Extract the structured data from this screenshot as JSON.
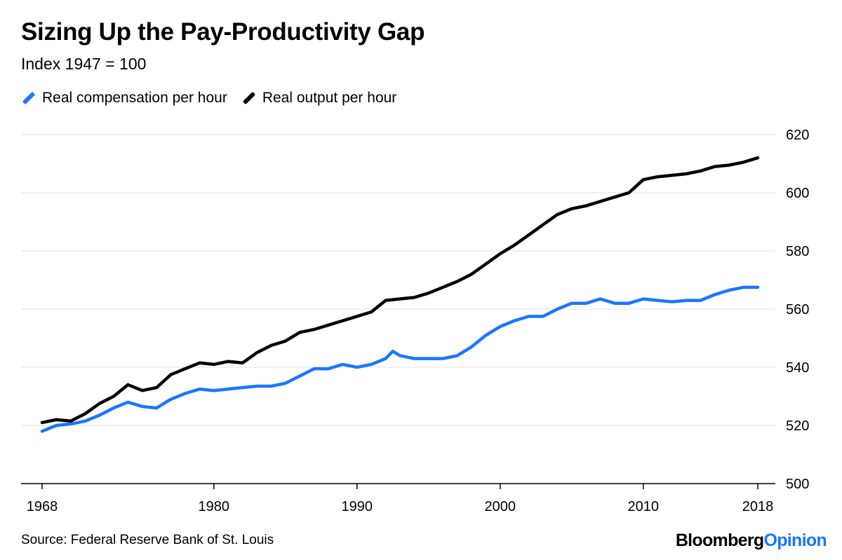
{
  "header": {
    "title": "Sizing Up the Pay-Productivity Gap",
    "subtitle": "Index 1947 = 100"
  },
  "footer": {
    "source": "Source: Federal Reserve Bank of St. Louis",
    "brand_part1": "Bloomberg",
    "brand_part2": "Opinion"
  },
  "colors": {
    "compensation": "#1a76ff",
    "output": "#000000",
    "grid": "#e3e3e3",
    "brand_accent": "#1a76ff"
  },
  "chart_data": {
    "type": "line",
    "title": "Sizing Up the Pay-Productivity Gap",
    "subtitle": "Index 1947 = 100",
    "xlabel": "",
    "ylabel": "",
    "xlim": [
      1968,
      2018
    ],
    "ylim": [
      500,
      620
    ],
    "x_ticks": [
      1968,
      1980,
      1990,
      2000,
      2010,
      2018
    ],
    "y_ticks": [
      500,
      520,
      540,
      560,
      580,
      600,
      620
    ],
    "y_axis_side": "right",
    "grid": "horizontal",
    "legend_position": "top-left",
    "series": [
      {
        "name": "Real compensation per hour",
        "color": "#1a76ff",
        "points": [
          [
            1968.0,
            518
          ],
          [
            1969.0,
            520
          ],
          [
            1970.0,
            520.5
          ],
          [
            1971.0,
            521.5
          ],
          [
            1972.0,
            523.5
          ],
          [
            1973.0,
            526
          ],
          [
            1974.0,
            528
          ],
          [
            1975.0,
            526.5
          ],
          [
            1976.0,
            526
          ],
          [
            1977.0,
            529
          ],
          [
            1978.0,
            531
          ],
          [
            1979.0,
            532.5
          ],
          [
            1980.0,
            532
          ],
          [
            1981.0,
            532.5
          ],
          [
            1982.0,
            533
          ],
          [
            1983.0,
            533.5
          ],
          [
            1984.0,
            533.5
          ],
          [
            1985.0,
            534.5
          ],
          [
            1986.0,
            537
          ],
          [
            1987.0,
            539.5
          ],
          [
            1988.0,
            539.5
          ],
          [
            1989.0,
            541
          ],
          [
            1990.0,
            540
          ],
          [
            1991.0,
            541
          ],
          [
            1992.0,
            543
          ],
          [
            1992.5,
            545.5
          ],
          [
            1993.0,
            544
          ],
          [
            1994.0,
            543
          ],
          [
            1995.0,
            543
          ],
          [
            1996.0,
            543
          ],
          [
            1997.0,
            544
          ],
          [
            1998.0,
            547
          ],
          [
            1999.0,
            551
          ],
          [
            2000.0,
            554
          ],
          [
            2001.0,
            556
          ],
          [
            2002.0,
            557.5
          ],
          [
            2003.0,
            557.5
          ],
          [
            2004.0,
            560
          ],
          [
            2005.0,
            562
          ],
          [
            2006.0,
            562
          ],
          [
            2007.0,
            563.5
          ],
          [
            2008.0,
            562
          ],
          [
            2009.0,
            562
          ],
          [
            2010.0,
            563.5
          ],
          [
            2011.0,
            563
          ],
          [
            2012.0,
            562.5
          ],
          [
            2013.0,
            563
          ],
          [
            2014.0,
            563
          ],
          [
            2015.0,
            565
          ],
          [
            2016.0,
            566.5
          ],
          [
            2017.0,
            567.5
          ],
          [
            2018.0,
            567.5
          ]
        ]
      },
      {
        "name": "Real output per hour",
        "color": "#000000",
        "points": [
          [
            1968.0,
            521
          ],
          [
            1969.0,
            522
          ],
          [
            1970.0,
            521.5
          ],
          [
            1971.0,
            524
          ],
          [
            1972.0,
            527.5
          ],
          [
            1973.0,
            530
          ],
          [
            1974.0,
            534
          ],
          [
            1975.0,
            532
          ],
          [
            1976.0,
            533
          ],
          [
            1977.0,
            537.5
          ],
          [
            1978.0,
            539.5
          ],
          [
            1979.0,
            541.5
          ],
          [
            1980.0,
            541
          ],
          [
            1981.0,
            542
          ],
          [
            1982.0,
            541.5
          ],
          [
            1983.0,
            545
          ],
          [
            1984.0,
            547.5
          ],
          [
            1985.0,
            549
          ],
          [
            1986.0,
            552
          ],
          [
            1987.0,
            553
          ],
          [
            1988.0,
            554.5
          ],
          [
            1989.0,
            556
          ],
          [
            1990.0,
            557.5
          ],
          [
            1991.0,
            559
          ],
          [
            1992.0,
            563
          ],
          [
            1993.0,
            563.5
          ],
          [
            1994.0,
            564
          ],
          [
            1995.0,
            565.5
          ],
          [
            1996.0,
            567.5
          ],
          [
            1997.0,
            569.5
          ],
          [
            1998.0,
            572
          ],
          [
            1999.0,
            575.5
          ],
          [
            2000.0,
            579
          ],
          [
            2001.0,
            582
          ],
          [
            2002.0,
            585.5
          ],
          [
            2003.0,
            589
          ],
          [
            2004.0,
            592.5
          ],
          [
            2005.0,
            594.5
          ],
          [
            2006.0,
            595.5
          ],
          [
            2007.0,
            597
          ],
          [
            2008.0,
            598.5
          ],
          [
            2009.0,
            600
          ],
          [
            2010.0,
            604.5
          ],
          [
            2011.0,
            605.5
          ],
          [
            2012.0,
            606
          ],
          [
            2013.0,
            606.5
          ],
          [
            2014.0,
            607.5
          ],
          [
            2015.0,
            609
          ],
          [
            2016.0,
            609.5
          ],
          [
            2017.0,
            610.5
          ],
          [
            2018.0,
            612
          ]
        ]
      }
    ]
  }
}
